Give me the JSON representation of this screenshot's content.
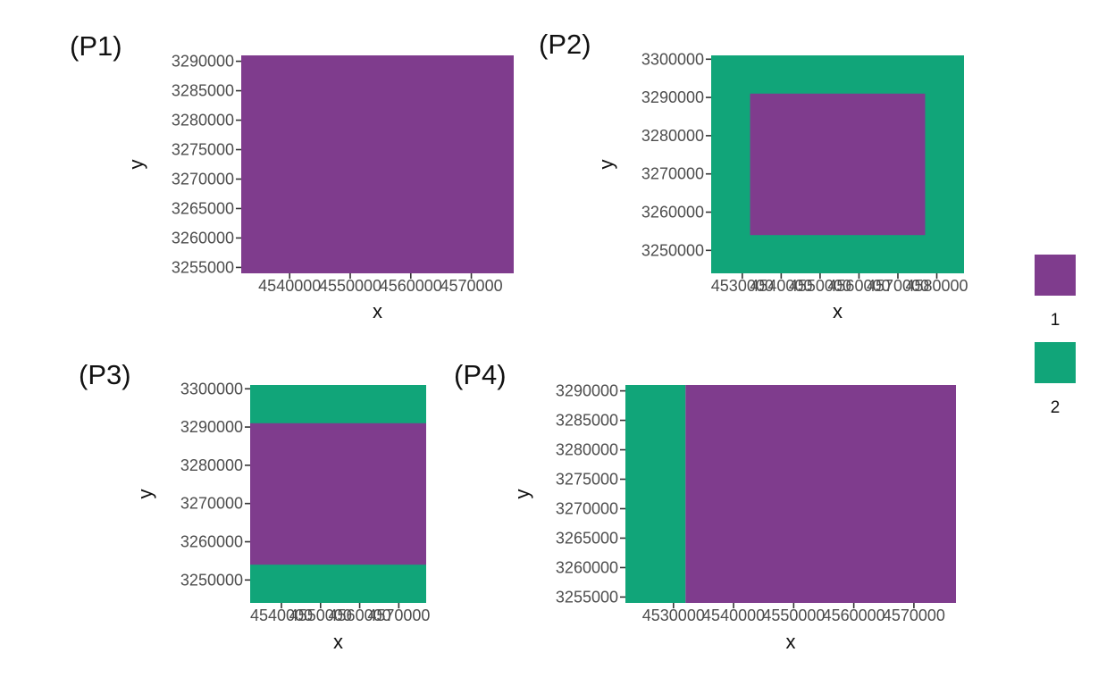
{
  "colors": {
    "1": "#7f3c8d",
    "2": "#11a579"
  },
  "legend": {
    "items": [
      {
        "label": "1",
        "color_key": "1"
      },
      {
        "label": "2",
        "color_key": "2"
      }
    ]
  },
  "chart_data": [
    {
      "type": "heatmap",
      "tag": "(P1)",
      "xlabel": "x",
      "ylabel": "y",
      "xlim": [
        4532000,
        4577000
      ],
      "ylim": [
        3254000,
        3291000
      ],
      "xticks": [
        4540000,
        4550000,
        4560000,
        4570000
      ],
      "yticks": [
        3255000,
        3260000,
        3265000,
        3270000,
        3275000,
        3280000,
        3285000,
        3290000
      ],
      "cells": [
        {
          "x0": 4532000,
          "x1": 4577000,
          "y0": 3254000,
          "y1": 3291000,
          "value": 1
        }
      ]
    },
    {
      "type": "heatmap",
      "tag": "(P2)",
      "xlabel": "x",
      "ylabel": "y",
      "xlim": [
        4522000,
        4587000
      ],
      "ylim": [
        3244000,
        3301000
      ],
      "xticks": [
        4530000,
        4540000,
        4550000,
        4560000,
        4570000,
        4580000
      ],
      "yticks": [
        3250000,
        3260000,
        3270000,
        3280000,
        3290000,
        3300000
      ],
      "cells": [
        {
          "x0": 4522000,
          "x1": 4587000,
          "y0": 3244000,
          "y1": 3301000,
          "value": 2
        },
        {
          "x0": 4532000,
          "x1": 4577000,
          "y0": 3254000,
          "y1": 3291000,
          "value": 1
        }
      ]
    },
    {
      "type": "heatmap",
      "tag": "(P3)",
      "xlabel": "x",
      "ylabel": "y",
      "xlim": [
        4532000,
        4577000
      ],
      "ylim": [
        3244000,
        3301000
      ],
      "xticks": [
        4540000,
        4550000,
        4560000,
        4570000
      ],
      "yticks": [
        3250000,
        3260000,
        3270000,
        3280000,
        3290000,
        3300000
      ],
      "cells": [
        {
          "x0": 4532000,
          "x1": 4577000,
          "y0": 3244000,
          "y1": 3301000,
          "value": 2
        },
        {
          "x0": 4532000,
          "x1": 4577000,
          "y0": 3254000,
          "y1": 3291000,
          "value": 1
        }
      ]
    },
    {
      "type": "heatmap",
      "tag": "(P4)",
      "xlabel": "x",
      "ylabel": "y",
      "xlim": [
        4522000,
        4577000
      ],
      "ylim": [
        3254000,
        3291000
      ],
      "xticks": [
        4530000,
        4540000,
        4550000,
        4560000,
        4570000
      ],
      "yticks": [
        3255000,
        3260000,
        3265000,
        3270000,
        3275000,
        3280000,
        3285000,
        3290000
      ],
      "cells": [
        {
          "x0": 4522000,
          "x1": 4532000,
          "y0": 3254000,
          "y1": 3291000,
          "value": 2
        },
        {
          "x0": 4532000,
          "x1": 4577000,
          "y0": 3254000,
          "y1": 3291000,
          "value": 1
        }
      ]
    }
  ]
}
